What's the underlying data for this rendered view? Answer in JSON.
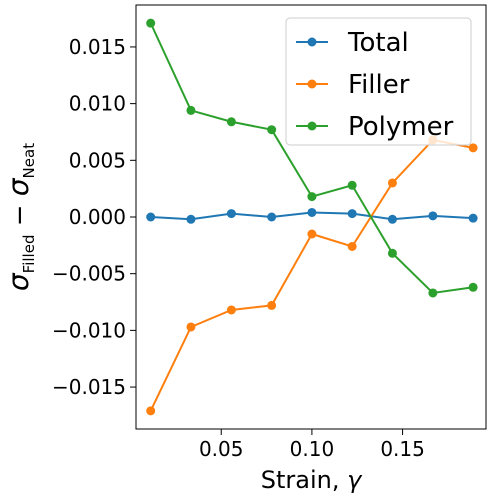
{
  "chart_data": {
    "type": "line",
    "title": "",
    "xlabel": "Strain, γ",
    "xlabel_main": "Strain, ",
    "xlabel_symbol": "γ",
    "ylabel": "σFilled − σNeat",
    "ylabel_parts": {
      "symbol": "σ",
      "sub1": "Filled",
      "operator": " − ",
      "sub2": "Neat"
    },
    "xlim": [
      0.003,
      0.196
    ],
    "ylim": [
      -0.0187,
      0.0187
    ],
    "xticks": [
      0.05,
      0.1,
      0.15
    ],
    "xtick_labels": [
      "0.05",
      "0.10",
      "0.15"
    ],
    "yticks": [
      -0.015,
      -0.01,
      -0.005,
      0.0,
      0.005,
      0.01,
      0.015
    ],
    "ytick_labels": [
      "−0.015",
      "−0.010",
      "−0.005",
      "0.000",
      "0.005",
      "0.010",
      "0.015"
    ],
    "grid": false,
    "legend_position": "top-right",
    "x": [
      0.0111,
      0.0333,
      0.0556,
      0.0778,
      0.1,
      0.1222,
      0.1444,
      0.1667,
      0.1889
    ],
    "series": [
      {
        "name": "Total",
        "color": "#1f77b4",
        "values": [
          0.0,
          -0.0002,
          0.0003,
          0.0,
          0.0004,
          0.0003,
          -0.0002,
          0.0001,
          -0.0001
        ]
      },
      {
        "name": "Filler",
        "color": "#ff7f0e",
        "values": [
          -0.0171,
          -0.0097,
          -0.0082,
          -0.0078,
          -0.0015,
          -0.0026,
          0.003,
          0.0068,
          0.0061
        ]
      },
      {
        "name": "Polymer",
        "color": "#2ca02c",
        "values": [
          0.0171,
          0.0094,
          0.0084,
          0.0077,
          0.0018,
          0.0028,
          -0.0032,
          -0.0067,
          -0.0062
        ]
      }
    ]
  }
}
